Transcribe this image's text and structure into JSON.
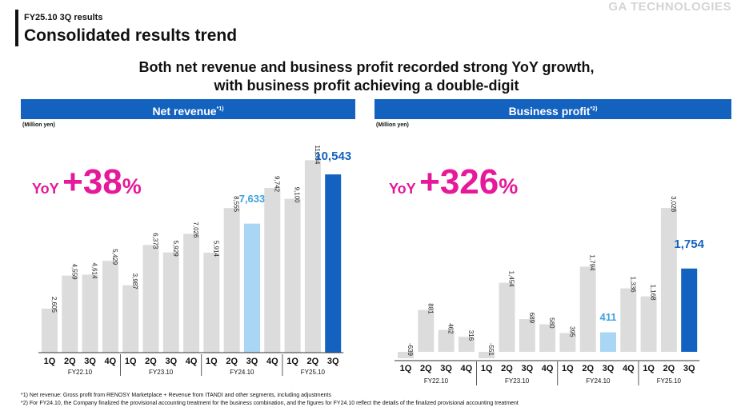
{
  "header": {
    "subtitle": "FY25.10 3Q results",
    "title": "Consolidated results trend",
    "brand": "GA TECHNOLOGIES"
  },
  "headline": {
    "line1": "Both net revenue and business profit recorded strong YoY growth,",
    "line2": "with business profit achieving a double-digit"
  },
  "colors": {
    "brand_blue": "#1462c0",
    "highlight_pink": "#e5199a",
    "bar_gray": "#dcdcdc",
    "bar_light_blue": "#a9d6f5",
    "bar_dark_blue": "#1462c0",
    "label_light_blue": "#3fa0e0"
  },
  "chart_data": [
    {
      "type": "bar",
      "title": "Net revenue",
      "title_note": "*1)",
      "ylabel": "(Million yen)",
      "yoy": {
        "prefix": "YoY",
        "sign": "+",
        "value": "38",
        "unit": "%"
      },
      "quarters": [
        "1Q",
        "2Q",
        "3Q",
        "4Q",
        "1Q",
        "2Q",
        "3Q",
        "4Q",
        "1Q",
        "2Q",
        "3Q",
        "4Q",
        "1Q",
        "2Q",
        "3Q"
      ],
      "groups": [
        "FY22.10",
        "FY23.10",
        "FY24.10",
        "FY25.10"
      ],
      "values": [
        2605,
        4559,
        4614,
        5429,
        3987,
        6373,
        5929,
        7026,
        5914,
        8555,
        7633,
        9742,
        9100,
        11384,
        10543
      ],
      "labels": [
        "2,605",
        "4,559",
        "4,614",
        "5,429",
        "3,987",
        "6,373",
        "5,929",
        "7,026",
        "5,914",
        "8,555",
        "7,633",
        "9,742",
        "9,100",
        "11,384",
        "10,543"
      ],
      "highlight_prior": 10,
      "highlight_current": 14
    },
    {
      "type": "bar",
      "title": "Business profit",
      "title_note": "*2)",
      "ylabel": "(Million yen)",
      "yoy": {
        "prefix": "YoY",
        "sign": "+",
        "value": "326",
        "unit": "%"
      },
      "quarters": [
        "1Q",
        "2Q",
        "3Q",
        "4Q",
        "1Q",
        "2Q",
        "3Q",
        "4Q",
        "1Q",
        "2Q",
        "3Q",
        "4Q",
        "1Q",
        "2Q",
        "3Q"
      ],
      "groups": [
        "FY22.10",
        "FY23.10",
        "FY24.10",
        "FY25.10"
      ],
      "values": [
        -639,
        881,
        462,
        316,
        -551,
        1454,
        689,
        580,
        395,
        1794,
        411,
        1336,
        1168,
        3028,
        1754
      ],
      "labels": [
        "-639",
        "881",
        "462",
        "316",
        "-551",
        "1,454",
        "689",
        "580",
        "395",
        "1,794",
        "411",
        "1,336",
        "1,168",
        "3,028",
        "1,754"
      ],
      "highlight_prior": 10,
      "highlight_current": 14
    }
  ],
  "footnotes": {
    "note1": "*1) Net revenue: Gross profit from RENOSY Marketplace + Revenue from ITANDI and other segments, including adjustments",
    "note2": "*2) For FY24.10, the Company finalized the provisional accounting treatment for the business combination, and the figures for FY24.10 reflect the details of the finalized provisional accounting treatment"
  }
}
